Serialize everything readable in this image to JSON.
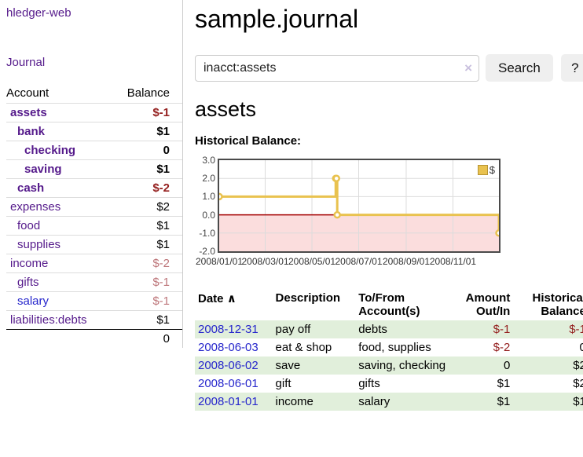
{
  "colors": {
    "link_purple": "#551a8b",
    "link_blue": "#2727cc",
    "negative_strong": "#941f1e",
    "negative_muted": "#bd7579",
    "row_stripe_green": "#e1efdb",
    "chart_gold": "#e9c24f",
    "chart_pink": "#fbdddd",
    "chart_zero_red": "#a40000"
  },
  "sidebar": {
    "app_title": "hledger-web",
    "journal_label": "Journal",
    "accounts_table": {
      "headers": {
        "account": "Account",
        "balance": "Balance"
      },
      "rows": [
        {
          "name": "assets",
          "balance": "$-1",
          "level": 1,
          "emphasis": true,
          "balance_tone": "negative",
          "name_tone": "purple"
        },
        {
          "name": "bank",
          "balance": "$1",
          "level": 2,
          "emphasis": true,
          "balance_tone": "normal",
          "name_tone": "purple"
        },
        {
          "name": "checking",
          "balance": "0",
          "level": 3,
          "emphasis": true,
          "balance_tone": "normal",
          "name_tone": "purple"
        },
        {
          "name": "saving",
          "balance": "$1",
          "level": 3,
          "emphasis": true,
          "balance_tone": "normal",
          "name_tone": "purple"
        },
        {
          "name": "cash",
          "balance": "$-2",
          "level": 2,
          "emphasis": true,
          "balance_tone": "negative",
          "name_tone": "purple"
        },
        {
          "name": "expenses",
          "balance": "$2",
          "level": 1,
          "emphasis": false,
          "balance_tone": "normal",
          "name_tone": "purple"
        },
        {
          "name": "food",
          "balance": "$1",
          "level": 2,
          "emphasis": false,
          "balance_tone": "normal",
          "name_tone": "purple"
        },
        {
          "name": "supplies",
          "balance": "$1",
          "level": 2,
          "emphasis": false,
          "balance_tone": "normal",
          "name_tone": "purple"
        },
        {
          "name": "income",
          "balance": "$-2",
          "level": 1,
          "emphasis": false,
          "balance_tone": "negative-muted",
          "name_tone": "purple"
        },
        {
          "name": "gifts",
          "balance": "$-1",
          "level": 2,
          "emphasis": false,
          "balance_tone": "negative-muted",
          "name_tone": "purple"
        },
        {
          "name": "salary",
          "balance": "$-1",
          "level": 2,
          "emphasis": false,
          "balance_tone": "negative-muted",
          "name_tone": "blue"
        },
        {
          "name": "liabilities:debts",
          "balance": "$1",
          "level": 1,
          "emphasis": false,
          "balance_tone": "normal",
          "name_tone": "purple"
        }
      ],
      "total": "0"
    }
  },
  "header": {
    "title": "sample.journal"
  },
  "search": {
    "query": "inacct:assets",
    "clear_icon": "×",
    "search_label": "Search",
    "help_label": "?"
  },
  "main": {
    "account_heading": "assets"
  },
  "chart_data": {
    "type": "line",
    "step": true,
    "title": "Historical Balance:",
    "x_range": [
      "2008-01-01",
      "2008-12-31"
    ],
    "ylim": [
      -2,
      3
    ],
    "yticks": [
      "3.0",
      "2.0",
      "1.0",
      "0.0",
      "-1.0",
      "-2.0"
    ],
    "xticks": [
      {
        "date": "2008-01-01",
        "label": "2008/01/01"
      },
      {
        "date": "2008-03-01",
        "label": "2008/03/01"
      },
      {
        "date": "2008-05-01",
        "label": "2008/05/01"
      },
      {
        "date": "2008-07-01",
        "label": "2008/07/01"
      },
      {
        "date": "2008-09-01",
        "label": "2008/09/01"
      },
      {
        "date": "2008-11-01",
        "label": "2008/11/01"
      }
    ],
    "series": [
      {
        "name": "$",
        "color": "#e9c24f",
        "points": [
          [
            "2008-01-01",
            1
          ],
          [
            "2008-06-01",
            2
          ],
          [
            "2008-06-02",
            2
          ],
          [
            "2008-06-03",
            0
          ],
          [
            "2008-12-31",
            -1
          ]
        ]
      }
    ],
    "legend": {
      "label": "$",
      "position": "top-right"
    },
    "grid": true,
    "negative_region_color": "#fbdddd",
    "zero_line_color": "#a40000"
  },
  "register": {
    "headers": {
      "date": "Date",
      "description": "Description",
      "accounts": "To/From Account(s)",
      "amount": "Amount Out/In",
      "balance": "Historical Balance"
    },
    "sort_icon": "∧",
    "rows": [
      {
        "date": "2008-12-31",
        "description": "pay off",
        "accounts": "debts",
        "amount": "$-1",
        "amount_negative": true,
        "balance": "$-1",
        "balance_negative": true,
        "shaded": true
      },
      {
        "date": "2008-06-03",
        "description": "eat & shop",
        "accounts": "food, supplies",
        "amount": "$-2",
        "amount_negative": true,
        "balance": "0",
        "balance_negative": false,
        "shaded": false
      },
      {
        "date": "2008-06-02",
        "description": "save",
        "accounts": "saving, checking",
        "amount": "0",
        "amount_negative": false,
        "balance": "$2",
        "balance_negative": false,
        "shaded": true
      },
      {
        "date": "2008-06-01",
        "description": "gift",
        "accounts": "gifts",
        "amount": "$1",
        "amount_negative": false,
        "balance": "$2",
        "balance_negative": false,
        "shaded": false
      },
      {
        "date": "2008-01-01",
        "description": "income",
        "accounts": "salary",
        "amount": "$1",
        "amount_negative": false,
        "balance": "$1",
        "balance_negative": false,
        "shaded": true
      }
    ]
  }
}
